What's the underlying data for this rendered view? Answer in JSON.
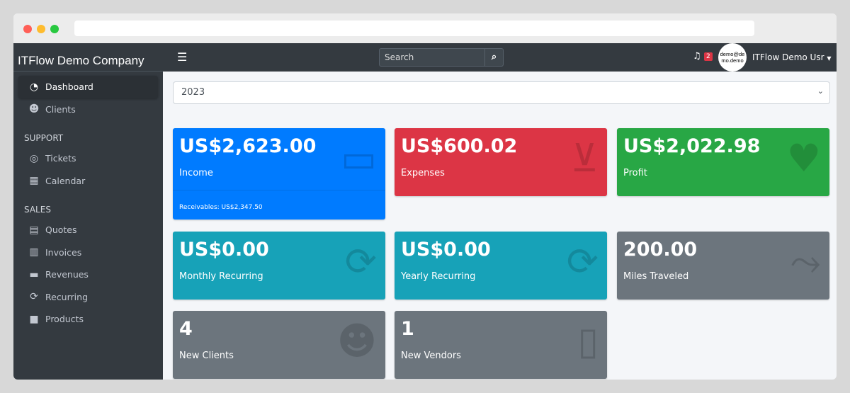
{
  "brand": "ITFlow Demo Company",
  "search": {
    "placeholder": "Search"
  },
  "user": {
    "name": "ITFlow Demo Usr",
    "avatar_text": "demo@demo.demo",
    "notifications": "2"
  },
  "year": "2023",
  "sidebar": {
    "items": [
      {
        "label": "Dashboard",
        "icon": "tachometer-icon",
        "active": true
      },
      {
        "label": "Clients",
        "icon": "users-icon"
      }
    ],
    "support_header": "SUPPORT",
    "support": [
      {
        "label": "Tickets",
        "icon": "life-ring-icon"
      },
      {
        "label": "Calendar",
        "icon": "calendar-icon"
      }
    ],
    "sales_header": "SALES",
    "sales": [
      {
        "label": "Quotes",
        "icon": "file-icon"
      },
      {
        "label": "Invoices",
        "icon": "invoice-icon"
      },
      {
        "label": "Revenues",
        "icon": "credit-card-icon"
      },
      {
        "label": "Recurring",
        "icon": "sync-icon"
      },
      {
        "label": "Products",
        "icon": "box-icon"
      }
    ]
  },
  "cards": [
    {
      "value": "US$2,623.00",
      "label": "Income",
      "footer": "Receivables: US$2,347.50",
      "color": "#007bff"
    },
    {
      "value": "US$600.02",
      "label": "Expenses",
      "color": "#dc3545"
    },
    {
      "value": "US$2,022.98",
      "label": "Profit",
      "color": "#28a745"
    },
    {
      "value": "US$0.00",
      "label": "Monthly Recurring",
      "color": "#17a2b8"
    },
    {
      "value": "US$0.00",
      "label": "Yearly Recurring",
      "color": "#17a2b8"
    },
    {
      "value": "200.00",
      "label": "Miles Traveled",
      "color": "#6c757d"
    },
    {
      "value": "4",
      "label": "New Clients",
      "color": "#6c757d"
    },
    {
      "value": "1",
      "label": "New Vendors",
      "color": "#6c757d"
    }
  ]
}
